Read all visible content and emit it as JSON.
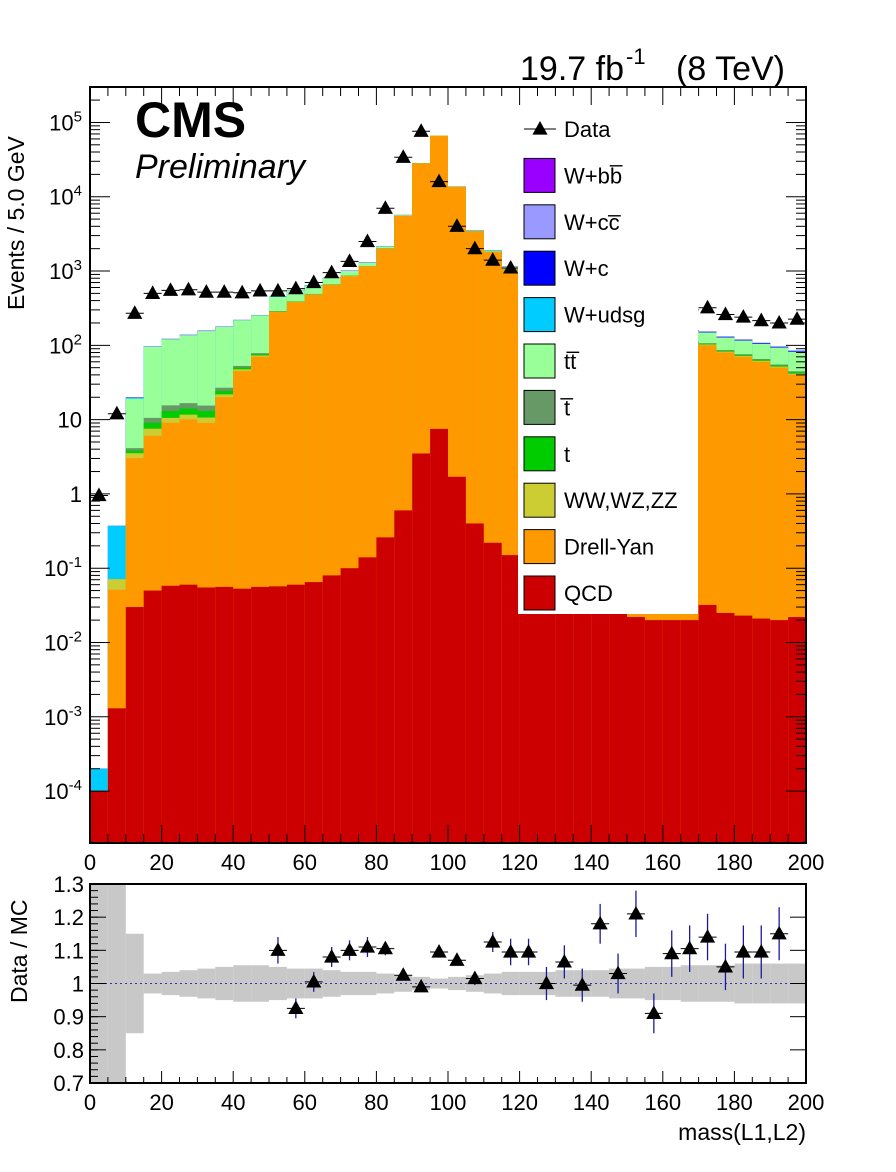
{
  "header": {
    "lumi_text": "19.7 fb",
    "lumi_exp": "-1",
    "energy_text": "(8 TeV)",
    "experiment": "CMS",
    "status": "Preliminary"
  },
  "chart_data": [
    {
      "type": "bar",
      "stacked": true,
      "log_y": true,
      "xlabel": "",
      "ylabel": "Events / 5.0 GeV",
      "xlim": [
        0,
        200
      ],
      "ylim": [
        2e-05,
        300000
      ],
      "x_ticks": [
        0,
        20,
        40,
        60,
        80,
        100,
        120,
        140,
        160,
        180,
        200
      ],
      "y_tick_labels": [
        "10-4",
        "10-3",
        "10-2",
        "10-1",
        "1",
        "10",
        "102",
        "103",
        "104",
        "105"
      ],
      "bin_edges": [
        0,
        5,
        10,
        15,
        20,
        25,
        30,
        35,
        40,
        45,
        50,
        55,
        60,
        65,
        70,
        75,
        80,
        85,
        90,
        95,
        100,
        105,
        110,
        115,
        120,
        125,
        130,
        135,
        140,
        145,
        150,
        155,
        160,
        165,
        170,
        175,
        180,
        185,
        190,
        195,
        200
      ],
      "legend_position": "top-right",
      "series": [
        {
          "name": "QCD",
          "color": "#cc0000",
          "values": [
            0.0001,
            0.0013,
            0.03,
            0.05,
            0.058,
            0.06,
            0.055,
            0.056,
            0.053,
            0.056,
            0.057,
            0.06,
            0.065,
            0.08,
            0.1,
            0.14,
            0.26,
            0.6,
            3.5,
            7.5,
            1.7,
            0.4,
            0.22,
            0.15,
            0.1,
            0.07,
            0.05,
            0.04,
            0.03,
            0.025,
            0.022,
            0.02,
            0.02,
            0.02,
            0.032,
            0.025,
            0.023,
            0.021,
            0.02,
            0.022
          ]
        },
        {
          "name": "Drell-Yan",
          "color": "#ff9900",
          "values": [
            0,
            0.05,
            3,
            6,
            9,
            10,
            9,
            20,
            45,
            70,
            280,
            380,
            480,
            650,
            850,
            1150,
            2000,
            5500,
            28000,
            66000,
            13500,
            3400,
            1800,
            1050,
            700,
            500,
            350,
            250,
            200,
            160,
            140,
            125,
            115,
            105,
            100,
            80,
            70,
            60,
            50,
            40
          ]
        },
        {
          "name": "WW,WZ,ZZ",
          "color": "#cccc33",
          "values": [
            0,
            0.02,
            0.5,
            1.5,
            1.5,
            1.6,
            1.6,
            1.8,
            2.5,
            3,
            4,
            5,
            6,
            8,
            10,
            14,
            25,
            60,
            300,
            600,
            150,
            40,
            20,
            12,
            9,
            7,
            6,
            5,
            4.5,
            4,
            3.5,
            3.3,
            3,
            2.8,
            2.6,
            2.3,
            2.1,
            1.9,
            1.7,
            1.5
          ]
        },
        {
          "name": "t",
          "color": "#00cc00",
          "values": [
            0,
            0,
            0.3,
            1.5,
            2.5,
            2.5,
            2.4,
            2.5,
            2.6,
            2.7,
            2.8,
            2.9,
            3,
            3.1,
            3.2,
            3.2,
            3.3,
            3.3,
            3.3,
            3.3,
            3.2,
            3.2,
            3.1,
            3,
            3,
            2.9,
            2.8,
            2.7,
            2.7,
            2.6,
            2.5,
            2.4,
            2.3,
            2.2,
            2.1,
            2,
            1.9,
            1.8,
            1.7,
            1.6
          ]
        },
        {
          "name": "t̅",
          "color": "#669966",
          "values": [
            0,
            0,
            0.3,
            1.5,
            2.5,
            2.5,
            2.4,
            2.5,
            2.6,
            2.7,
            2.8,
            2.9,
            3,
            3.1,
            3.2,
            3.2,
            3.3,
            3.3,
            3.3,
            3.3,
            3.2,
            3.2,
            3.1,
            3,
            3,
            2.9,
            2.8,
            2.7,
            2.7,
            2.6,
            2.5,
            2.4,
            2.3,
            2.2,
            2.1,
            2,
            1.9,
            1.8,
            1.7,
            1.6
          ]
        },
        {
          "name": "tt̅",
          "color": "#99ff99",
          "values": [
            0,
            0,
            15,
            85,
            105,
            120,
            140,
            150,
            165,
            175,
            160,
            160,
            150,
            140,
            135,
            130,
            120,
            110,
            100,
            90,
            80,
            75,
            70,
            65,
            60,
            55,
            52,
            50,
            48,
            47,
            46,
            45,
            44,
            43,
            42,
            41,
            40,
            39,
            38,
            37
          ]
        },
        {
          "name": "W+udsg",
          "color": "#00ccff",
          "values": [
            0.0001,
            0.3,
            0.5,
            0.5,
            0.5,
            0.5,
            0.5,
            0.5,
            0.5,
            0.5,
            0.5,
            0.5,
            0.5,
            0.5,
            0.5,
            0.5,
            0.5,
            0.5,
            0.5,
            0.5,
            0.5,
            0.5,
            0.5,
            0.5,
            0.5,
            0.5,
            0.5,
            0.5,
            0.5,
            0.5,
            0.5,
            0.5,
            0.5,
            0.5,
            0.5,
            0.5,
            0.5,
            0.5,
            0.5,
            0.5
          ]
        },
        {
          "name": "W+c",
          "color": "#0000ff",
          "values": [
            0,
            0,
            0.2,
            0.5,
            0.8,
            1,
            1,
            1,
            1.2,
            1.5,
            3,
            4,
            5,
            6,
            7,
            8,
            10,
            12,
            15,
            20,
            15,
            12,
            10,
            8,
            6,
            5,
            4.5,
            4,
            3.5,
            3.2,
            3,
            2.8,
            2.6,
            2.5,
            3,
            2.7,
            2.5,
            2.3,
            2.1,
            2
          ]
        },
        {
          "name": "W+cc̅",
          "color": "#9999ff",
          "values": [
            0,
            0,
            0.05,
            0.1,
            0.2,
            0.2,
            0.2,
            0.2,
            0.3,
            0.3,
            0.5,
            0.6,
            0.7,
            0.8,
            1,
            1.2,
            1.5,
            2,
            3,
            4,
            3,
            2,
            1.5,
            1.2,
            1,
            0.9,
            0.8,
            0.7,
            0.6,
            0.6,
            0.5,
            0.5,
            0.5,
            0.4,
            0.5,
            0.4,
            0.4,
            0.4,
            0.3,
            0.3
          ]
        },
        {
          "name": "W+bb̅",
          "color": "#9900ff",
          "values": [
            0,
            0,
            0.05,
            0.1,
            0.2,
            0.2,
            0.2,
            0.2,
            0.3,
            0.3,
            0.5,
            0.6,
            0.7,
            0.8,
            1,
            1.2,
            1.5,
            2,
            3,
            4,
            3,
            2,
            1.5,
            1.2,
            1,
            0.9,
            0.8,
            0.7,
            0.6,
            0.6,
            0.5,
            0.5,
            0.5,
            0.4,
            0.5,
            0.4,
            0.4,
            0.4,
            0.3,
            0.3
          ]
        }
      ],
      "data_series": {
        "name": "Data",
        "x": [
          2.5,
          7.5,
          12.5,
          17.5,
          22.5,
          27.5,
          32.5,
          37.5,
          42.5,
          47.5,
          52.5,
          57.5,
          62.5,
          67.5,
          72.5,
          77.5,
          82.5,
          87.5,
          92.5,
          97.5,
          102.5,
          107.5,
          112.5,
          117.5,
          122.5,
          127.5,
          132.5,
          137.5,
          142.5,
          147.5,
          152.5,
          157.5,
          162.5,
          167.5,
          172.5,
          177.5,
          182.5,
          187.5,
          192.5,
          197.5
        ],
        "y": [
          0.95,
          12,
          270,
          500,
          550,
          560,
          520,
          520,
          510,
          540,
          540,
          580,
          700,
          950,
          1350,
          2500,
          7000,
          34000,
          76000,
          16000,
          4000,
          2000,
          1400,
          1100,
          790,
          660,
          530,
          460,
          400,
          370,
          350,
          330,
          310,
          300,
          320,
          260,
          240,
          215,
          200,
          225
        ]
      }
    },
    {
      "type": "scatter",
      "xlabel": "mass(L1,L2)",
      "ylabel": "Data / MC",
      "xlim": [
        0,
        200
      ],
      "ylim": [
        0.7,
        1.3
      ],
      "x_ticks": [
        0,
        20,
        40,
        60,
        80,
        100,
        120,
        140,
        160,
        180,
        200
      ],
      "y_ticks": [
        0.7,
        0.8,
        0.9,
        1,
        1.1,
        1.2,
        1.3
      ],
      "y_tick_labels": [
        "0.7",
        "0.8",
        "0.9",
        "1",
        "1.1",
        "1.2",
        "1.3"
      ],
      "points": {
        "x": [
          52.5,
          57.5,
          62.5,
          67.5,
          72.5,
          77.5,
          82.5,
          87.5,
          92.5,
          97.5,
          102.5,
          107.5,
          112.5,
          117.5,
          122.5,
          127.5,
          132.5,
          137.5,
          142.5,
          147.5,
          152.5,
          157.5,
          162.5,
          167.5,
          172.5,
          177.5,
          182.5,
          187.5,
          192.5
        ],
        "y": [
          1.1,
          0.925,
          1.005,
          1.08,
          1.1,
          1.11,
          1.105,
          1.025,
          0.99,
          1.095,
          1.07,
          1.015,
          1.125,
          1.095,
          1.095,
          1,
          1.065,
          0.995,
          1.18,
          1.03,
          1.21,
          0.91,
          1.09,
          1.105,
          1.14,
          1.05,
          1.095,
          1.095,
          1.15
        ],
        "err": [
          0.04,
          0.03,
          0.03,
          0.03,
          0.03,
          0.03,
          0.02,
          0.01,
          0.01,
          0.01,
          0.015,
          0.02,
          0.03,
          0.04,
          0.04,
          0.05,
          0.05,
          0.05,
          0.06,
          0.06,
          0.07,
          0.06,
          0.07,
          0.07,
          0.07,
          0.07,
          0.08,
          0.08,
          0.08
        ]
      },
      "mc_uncertainty": [
        0.35,
        0.35,
        0.15,
        0.03,
        0.035,
        0.04,
        0.045,
        0.05,
        0.055,
        0.055,
        0.05,
        0.045,
        0.045,
        0.04,
        0.035,
        0.035,
        0.03,
        0.025,
        0.02,
        0.015,
        0.02,
        0.025,
        0.03,
        0.035,
        0.035,
        0.035,
        0.04,
        0.04,
        0.04,
        0.045,
        0.045,
        0.05,
        0.05,
        0.055,
        0.055,
        0.055,
        0.06,
        0.06,
        0.06,
        0.06
      ]
    }
  ]
}
